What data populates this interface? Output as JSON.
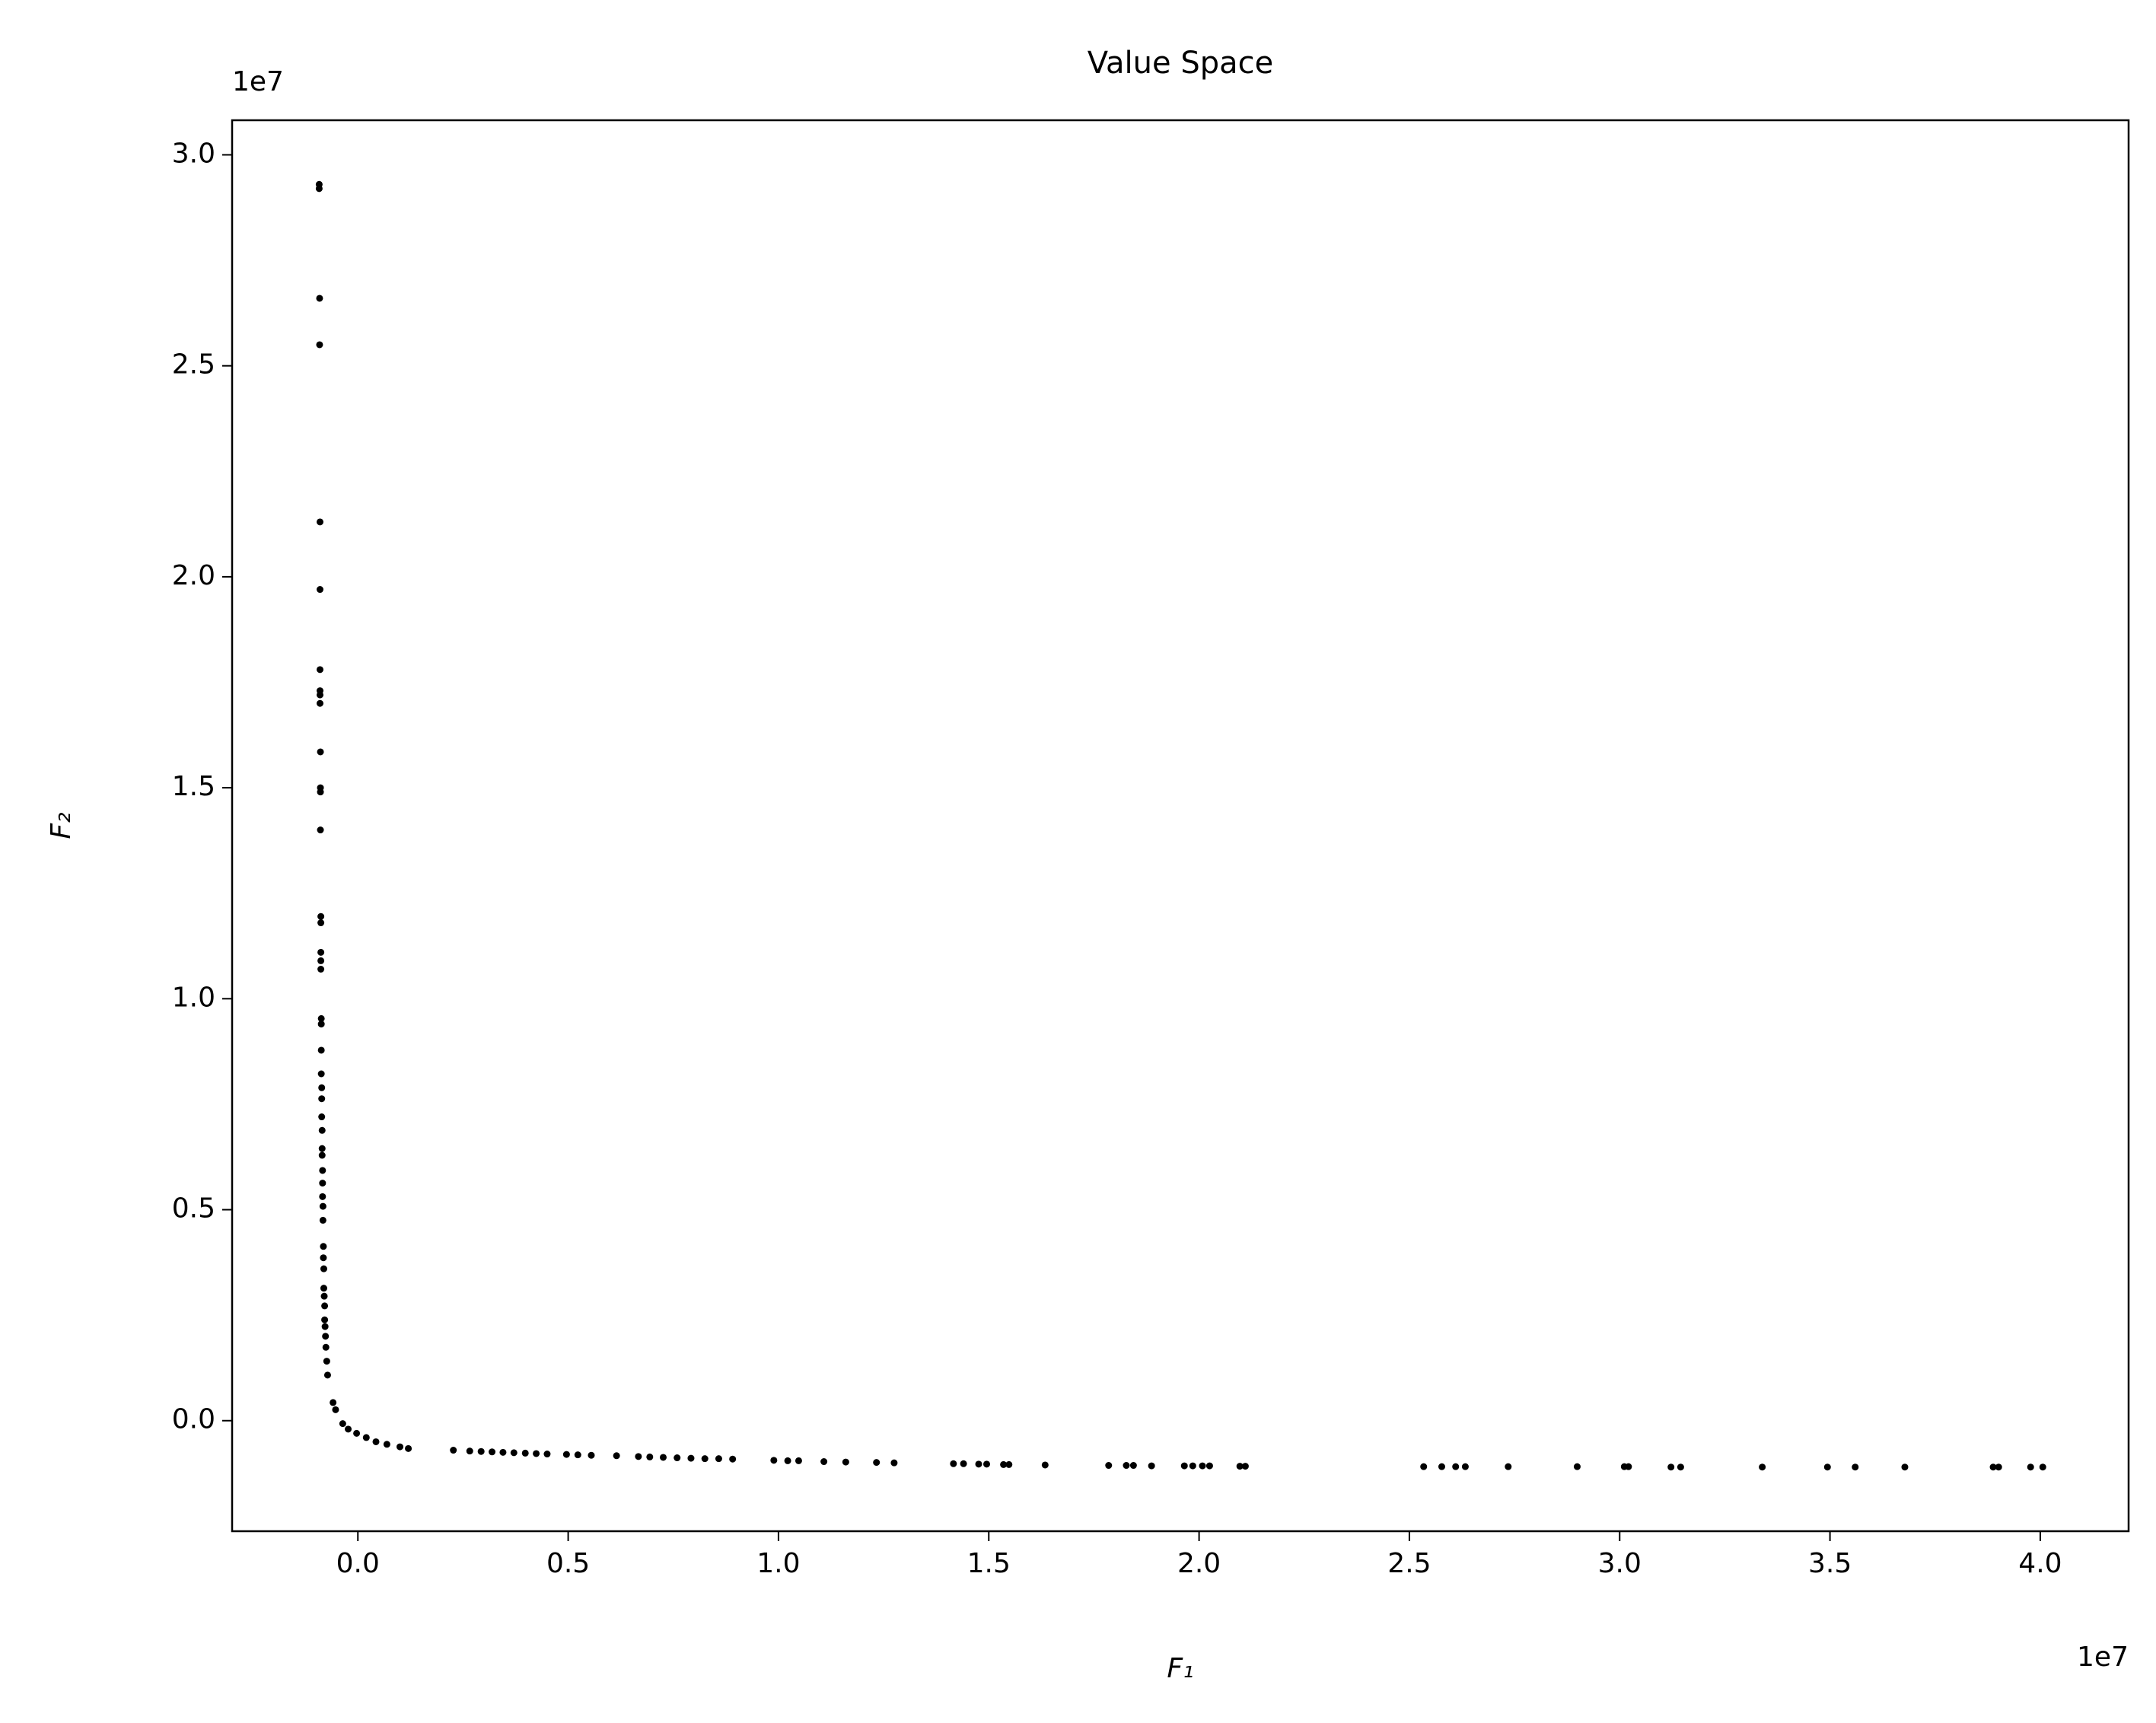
{
  "chart_data": {
    "type": "scatter",
    "title": "Value Space",
    "xlabel": "F₁",
    "ylabel": "F₂",
    "x_offset_label": "1e7",
    "y_offset_label": "1e7",
    "xlim": [
      -0.299,
      4.21
    ],
    "ylim": [
      -0.262,
      3.082
    ],
    "xticks": [
      {
        "value": 0,
        "label": "0.0"
      },
      {
        "value": 0.5,
        "label": "0.5"
      },
      {
        "value": 1,
        "label": "1.0"
      },
      {
        "value": 1.5,
        "label": "1.5"
      },
      {
        "value": 2,
        "label": "2.0"
      },
      {
        "value": 2.5,
        "label": "2.5"
      },
      {
        "value": 3,
        "label": "3.0"
      },
      {
        "value": 3.5,
        "label": "3.5"
      },
      {
        "value": 4,
        "label": "4.0"
      }
    ],
    "yticks": [
      {
        "value": 0,
        "label": "0.0"
      },
      {
        "value": 0.5,
        "label": "0.5"
      },
      {
        "value": 1,
        "label": "1.0"
      },
      {
        "value": 1.5,
        "label": "1.5"
      },
      {
        "value": 2,
        "label": "2.0"
      },
      {
        "value": 2.5,
        "label": "2.5"
      },
      {
        "value": 3,
        "label": "3.0"
      }
    ],
    "color": "#000000",
    "x": [
      -0.092,
      -0.092,
      -0.091,
      -0.091,
      -0.09,
      -0.09,
      -0.09,
      -0.09,
      -0.09,
      -0.09,
      -0.089,
      -0.089,
      -0.089,
      -0.089,
      -0.088,
      -0.088,
      -0.088,
      -0.088,
      -0.088,
      -0.087,
      -0.087,
      -0.087,
      -0.087,
      -0.086,
      -0.086,
      -0.086,
      -0.085,
      -0.085,
      -0.085,
      -0.084,
      -0.084,
      -0.084,
      -0.083,
      -0.083,
      -0.082,
      -0.082,
      -0.081,
      -0.081,
      -0.08,
      -0.079,
      -0.079,
      -0.078,
      -0.077,
      -0.076,
      -0.074,
      -0.072,
      -0.059,
      -0.053,
      -0.036,
      -0.023,
      -0.003,
      0.02,
      0.043,
      0.069,
      0.1,
      0.12,
      0.227,
      0.266,
      0.293,
      0.319,
      0.345,
      0.371,
      0.398,
      0.424,
      0.45,
      0.496,
      0.523,
      0.555,
      0.615,
      0.667,
      0.694,
      0.726,
      0.759,
      0.792,
      0.825,
      0.858,
      0.891,
      0.989,
      1.022,
      1.048,
      1.108,
      1.16,
      1.233,
      1.275,
      1.416,
      1.44,
      1.476,
      1.495,
      1.535,
      1.548,
      1.634,
      1.785,
      1.827,
      1.844,
      1.887,
      1.965,
      1.985,
      2.008,
      2.025,
      2.097,
      2.11,
      2.534,
      2.577,
      2.61,
      2.633,
      2.735,
      2.899,
      3.011,
      3.021,
      3.122,
      3.145,
      3.339,
      3.494,
      3.56,
      3.678,
      3.888,
      3.901,
      3.977,
      4.006
    ],
    "y": [
      2.93,
      2.92,
      2.66,
      2.55,
      2.13,
      1.97,
      1.78,
      1.73,
      1.72,
      1.7,
      1.585,
      1.5,
      1.49,
      1.4,
      1.195,
      1.18,
      1.11,
      1.09,
      1.07,
      0.953,
      0.94,
      0.878,
      0.822,
      0.789,
      0.763,
      0.72,
      0.688,
      0.645,
      0.629,
      0.593,
      0.563,
      0.531,
      0.508,
      0.475,
      0.413,
      0.386,
      0.36,
      0.314,
      0.295,
      0.272,
      0.239,
      0.223,
      0.2,
      0.174,
      0.141,
      0.108,
      0.043,
      0.026,
      -0.007,
      -0.02,
      -0.03,
      -0.04,
      -0.05,
      -0.056,
      -0.062,
      -0.066,
      -0.07,
      -0.072,
      -0.073,
      -0.074,
      -0.075,
      -0.076,
      -0.077,
      -0.078,
      -0.079,
      -0.08,
      -0.081,
      -0.082,
      -0.083,
      -0.085,
      -0.086,
      -0.087,
      -0.088,
      -0.089,
      -0.09,
      -0.09,
      -0.091,
      -0.094,
      -0.095,
      -0.095,
      -0.097,
      -0.098,
      -0.099,
      -0.1,
      -0.102,
      -0.102,
      -0.103,
      -0.103,
      -0.104,
      -0.104,
      -0.105,
      -0.106,
      -0.106,
      -0.106,
      -0.107,
      -0.107,
      -0.107,
      -0.107,
      -0.107,
      -0.108,
      -0.108,
      -0.109,
      -0.109,
      -0.109,
      -0.109,
      -0.109,
      -0.109,
      -0.109,
      -0.109,
      -0.11,
      -0.11,
      -0.11,
      -0.11,
      -0.11,
      -0.11,
      -0.11,
      -0.11,
      -0.11,
      -0.11
    ]
  }
}
